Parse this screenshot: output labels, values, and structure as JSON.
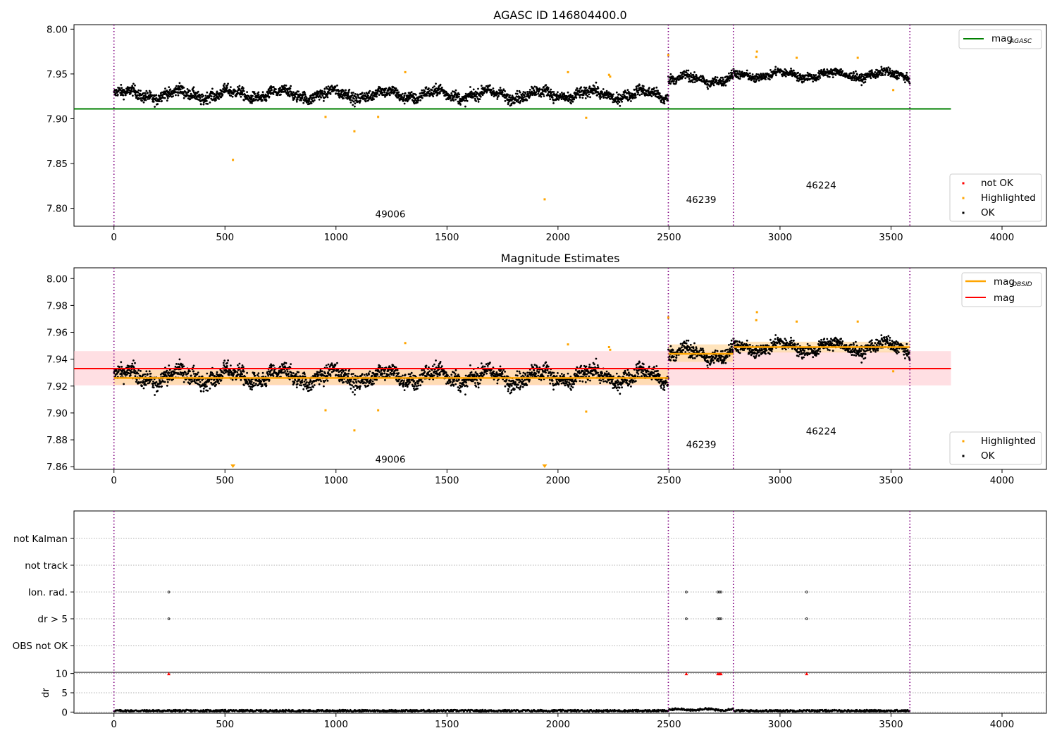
{
  "figure": {
    "title": "AGASC ID 146804400.0",
    "subtitle": "Magnitude Estimates"
  },
  "colors": {
    "ok": "#000000",
    "highlighted": "#ffa500",
    "not_ok": "#ff0000",
    "agasc_line": "#008000",
    "mag_line": "#ff0000",
    "mag_band": "#ffc0c8",
    "obsid_line": "#ffa500",
    "obsid_band": "#ffd9a0",
    "obsid_boundary": "#800080"
  },
  "chart_data": [
    {
      "type": "scatter",
      "panel": "top",
      "title": "AGASC ID 146804400.0",
      "xlim": [
        -180,
        4200
      ],
      "ylim": [
        7.78,
        8.005
      ],
      "xticks": [
        0,
        500,
        1000,
        1500,
        2000,
        2500,
        3000,
        3500,
        4000
      ],
      "yticks": [
        7.8,
        7.85,
        7.9,
        7.95,
        8.0
      ],
      "ytick_labels": [
        "7.80",
        "7.85",
        "7.90",
        "7.95",
        "8.00"
      ],
      "obsid_boundaries": [
        0,
        2497,
        2790,
        3585
      ],
      "obsid_labels": [
        {
          "label": "49006",
          "x": 1245,
          "y": 7.79
        },
        {
          "label": "46239",
          "x": 2645,
          "y": 7.806
        },
        {
          "label": "46224",
          "x": 3185,
          "y": 7.822
        }
      ],
      "agasc_mag": 7.911,
      "agasc_line_xrange": [
        -180,
        3770
      ],
      "segments": [
        {
          "x": [
            0,
            2497
          ],
          "mean": 7.927,
          "scatter": 0.008
        },
        {
          "x": [
            2497,
            2790
          ],
          "mean": 7.944,
          "scatter": 0.007
        },
        {
          "x": [
            2790,
            3585
          ],
          "mean": 7.949,
          "scatter": 0.006
        }
      ],
      "highlighted_points": [
        [
          536,
          7.854
        ],
        [
          953,
          7.902
        ],
        [
          1083,
          7.886
        ],
        [
          1190,
          7.902
        ],
        [
          1312,
          7.952
        ],
        [
          1940,
          7.81
        ],
        [
          2045,
          7.952
        ],
        [
          2127,
          7.901
        ],
        [
          2230,
          7.949
        ],
        [
          2235,
          7.947
        ],
        [
          2497,
          7.971
        ],
        [
          2896,
          7.975
        ],
        [
          2893,
          7.969
        ],
        [
          3075,
          7.968
        ],
        [
          3350,
          7.968
        ],
        [
          3510,
          7.932
        ]
      ],
      "legend_upper": [
        {
          "label": "mag",
          "subscript": "AGASC",
          "kind": "line",
          "color": "#008000"
        }
      ],
      "legend_lower": [
        {
          "label": "not OK",
          "kind": "marker",
          "color": "#ff0000"
        },
        {
          "label": "Highlighted",
          "kind": "marker",
          "color": "#ffa500"
        },
        {
          "label": "OK",
          "kind": "marker",
          "color": "#000000"
        }
      ]
    },
    {
      "type": "scatter",
      "panel": "middle",
      "title": "Magnitude Estimates",
      "xlim": [
        -180,
        4200
      ],
      "ylim": [
        7.858,
        8.008
      ],
      "xticks": [
        0,
        500,
        1000,
        1500,
        2000,
        2500,
        3000,
        3500,
        4000
      ],
      "yticks": [
        7.86,
        7.88,
        7.9,
        7.92,
        7.94,
        7.96,
        7.98,
        8.0
      ],
      "ytick_labels": [
        "7.86",
        "7.88",
        "7.90",
        "7.92",
        "7.94",
        "7.96",
        "7.98",
        "8.00"
      ],
      "obsid_boundaries": [
        0,
        2497,
        2790,
        3585
      ],
      "obsid_labels": [
        {
          "label": "49006",
          "x": 1245,
          "y": 7.863
        },
        {
          "label": "46239",
          "x": 2645,
          "y": 7.874
        },
        {
          "label": "46224",
          "x": 3185,
          "y": 7.884
        }
      ],
      "mag": 7.933,
      "mag_band": [
        7.9205,
        7.946
      ],
      "mag_line_xrange": [
        -180,
        3770
      ],
      "obsid_mags": [
        {
          "x": [
            0,
            2497
          ],
          "mag": 7.926,
          "band": [
            7.921,
            7.932
          ]
        },
        {
          "x": [
            2497,
            2790
          ],
          "mag": 7.944,
          "band": [
            7.938,
            7.951
          ]
        },
        {
          "x": [
            2790,
            3585
          ],
          "mag": 7.949,
          "band": [
            7.945,
            7.953
          ]
        }
      ],
      "highlighted_points": [
        [
          953,
          7.902
        ],
        [
          1083,
          7.887
        ],
        [
          1190,
          7.902
        ],
        [
          1312,
          7.952
        ],
        [
          2045,
          7.951
        ],
        [
          2127,
          7.901
        ],
        [
          2230,
          7.949
        ],
        [
          2235,
          7.947
        ],
        [
          2497,
          7.971
        ],
        [
          2896,
          7.975
        ],
        [
          2893,
          7.969
        ],
        [
          3075,
          7.968
        ],
        [
          3350,
          7.968
        ],
        [
          3510,
          7.931
        ]
      ],
      "clipped_markers": [
        536,
        1940
      ],
      "legend_upper": [
        {
          "label": "mag",
          "subscript": "OBSID",
          "kind": "line",
          "color": "#ffa500"
        },
        {
          "label": "mag",
          "kind": "line",
          "color": "#ff0000"
        }
      ],
      "legend_lower": [
        {
          "label": "Highlighted",
          "kind": "marker",
          "color": "#ffa500"
        },
        {
          "label": "OK",
          "kind": "marker",
          "color": "#000000"
        }
      ]
    },
    {
      "type": "scatter",
      "panel": "flags",
      "categories": [
        "not Kalman",
        "not track",
        "Ion. rad.",
        "dr > 5",
        "OBS not OK"
      ],
      "xlim": [
        -180,
        4200
      ],
      "obsid_boundaries": [
        0,
        2497,
        2790,
        3585
      ],
      "flag_points": {
        "not Kalman": [],
        "not track": [],
        "Ion. rad.": [
          247,
          2578,
          2720,
          2727,
          2734,
          3120
        ],
        "dr > 5": [
          247,
          2578,
          2720,
          2727,
          2734,
          3120
        ],
        "OBS not OK": []
      }
    },
    {
      "type": "scatter",
      "panel": "dr",
      "ylabel": "dr",
      "xlim": [
        -180,
        4200
      ],
      "ylim": [
        -0.3,
        10.3
      ],
      "yticks": [
        0,
        5,
        10
      ],
      "ytick_labels": [
        "0",
        "5",
        "10"
      ],
      "xticks": [
        0,
        500,
        1000,
        1500,
        2000,
        2500,
        3000,
        3500,
        4000
      ],
      "obsid_boundaries": [
        0,
        2497,
        2790,
        3585
      ],
      "typical_dr": 0.35,
      "clipped_markers": [
        247,
        2578,
        2720,
        2727,
        2734,
        3120
      ]
    }
  ]
}
